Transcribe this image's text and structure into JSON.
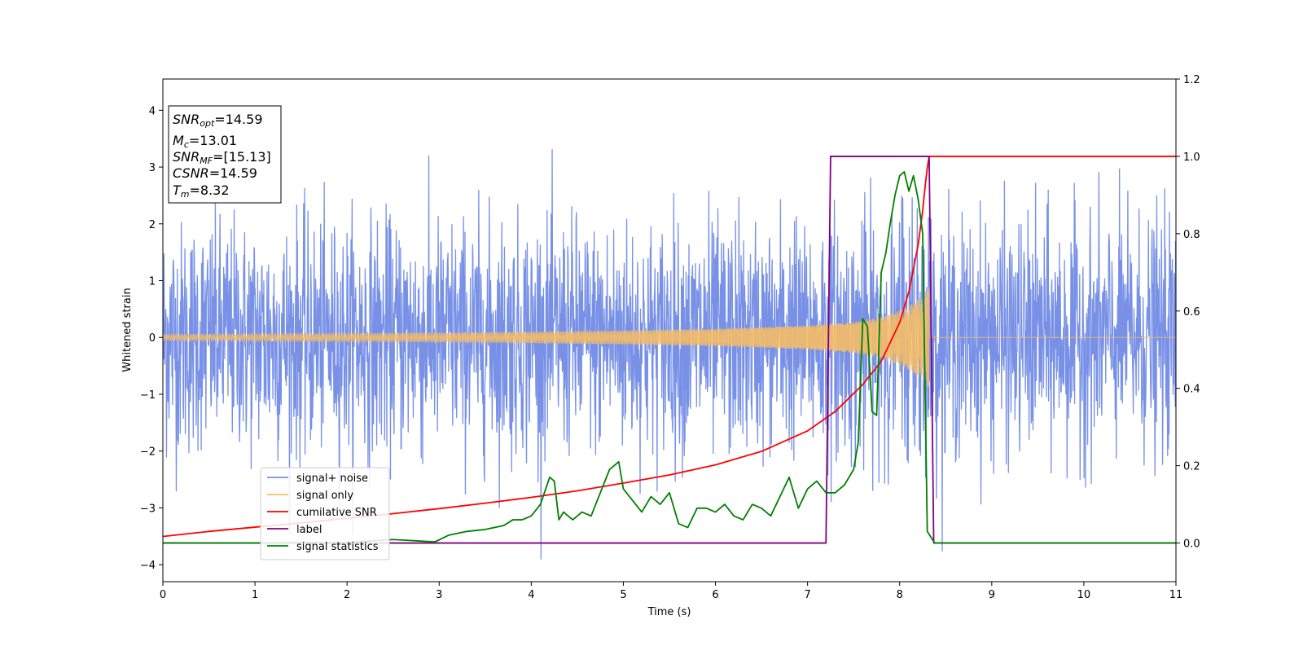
{
  "chart_data": {
    "type": "line",
    "title": "",
    "xlabel": "Time (s)",
    "ylabel": "Whitened strain",
    "xlim": [
      0,
      11
    ],
    "ylim": [
      -4.3,
      4.55
    ],
    "y2lim": [
      -0.1,
      1.2
    ],
    "grid": false,
    "legend_position": "lower-left",
    "x_ticks": [
      0,
      1,
      2,
      3,
      4,
      5,
      6,
      7,
      8,
      9,
      10,
      11
    ],
    "y_ticks": [
      -4,
      -3,
      -2,
      -1,
      0,
      1,
      2,
      3,
      4
    ],
    "y2_ticks": [
      0.0,
      0.2,
      0.4,
      0.6,
      0.8,
      1.0,
      1.2
    ],
    "y2_tick_labels": [
      "0.0",
      "0.2",
      "0.4",
      "0.6",
      "0.8",
      "1.0",
      "1.2"
    ],
    "annotation": {
      "snr_opt": {
        "symbol": "SNR",
        "sub": "opt",
        "value": "=14.59"
      },
      "mc": {
        "symbol": "M",
        "sub": "c",
        "value": "=13.01"
      },
      "snr_mf": {
        "symbol": "SNR",
        "sub": "MF",
        "value": "=[15.13]"
      },
      "csnr": {
        "symbol": "CSNR",
        "value": "=14.59"
      },
      "tm": {
        "symbol": "T",
        "sub": "m",
        "value": "=8.32"
      }
    },
    "series": [
      {
        "name": "signal+ noise",
        "axis": "left",
        "color": "#7891e6",
        "noise_std": 1.0,
        "x_range": [
          0,
          11
        ]
      },
      {
        "name": "signal only",
        "axis": "left",
        "color": "#f4bd67",
        "envelope": {
          "x": [
            0,
            1,
            2,
            3,
            4,
            5,
            6,
            7,
            7.5,
            7.8,
            8.0,
            8.15,
            8.25,
            8.3,
            8.32
          ],
          "amp": [
            0.05,
            0.06,
            0.07,
            0.08,
            0.1,
            0.12,
            0.15,
            0.21,
            0.27,
            0.36,
            0.48,
            0.62,
            0.76,
            0.85,
            0.88
          ]
        },
        "end_x": 8.32
      },
      {
        "name": "cumilative SNR",
        "axis": "right",
        "color": "#ff0000",
        "x": [
          0,
          0.5,
          1,
          1.5,
          2,
          2.5,
          3,
          3.5,
          4,
          4.5,
          5,
          5.5,
          6,
          6.5,
          7,
          7.3,
          7.6,
          7.8,
          8.0,
          8.1,
          8.2,
          8.25,
          8.28,
          8.3,
          8.32,
          9,
          10,
          11
        ],
        "values": [
          0.017,
          0.03,
          0.041,
          0.052,
          0.064,
          0.076,
          0.089,
          0.103,
          0.118,
          0.135,
          0.155,
          0.176,
          0.202,
          0.237,
          0.29,
          0.34,
          0.41,
          0.47,
          0.57,
          0.65,
          0.77,
          0.86,
          0.93,
          0.97,
          1.0,
          1.0,
          1.0,
          1.0
        ]
      },
      {
        "name": "label",
        "axis": "right",
        "color": "#800080",
        "x": [
          0,
          7.2,
          7.25,
          8.32,
          8.37,
          11
        ],
        "values": [
          0,
          0,
          1,
          1,
          0,
          0
        ]
      },
      {
        "name": "signal statistics",
        "axis": "right",
        "color": "#008000",
        "x": [
          0,
          1,
          2,
          2.5,
          2.8,
          2.95,
          3.0,
          3.1,
          3.3,
          3.5,
          3.7,
          3.8,
          3.9,
          4.0,
          4.1,
          4.2,
          4.25,
          4.3,
          4.35,
          4.45,
          4.55,
          4.65,
          4.75,
          4.85,
          4.95,
          5.0,
          5.1,
          5.2,
          5.3,
          5.4,
          5.5,
          5.6,
          5.7,
          5.8,
          5.9,
          6.0,
          6.1,
          6.2,
          6.3,
          6.4,
          6.5,
          6.6,
          6.7,
          6.8,
          6.9,
          7.0,
          7.1,
          7.2,
          7.3,
          7.4,
          7.5,
          7.55,
          7.6,
          7.65,
          7.7,
          7.75,
          7.8,
          7.85,
          7.9,
          7.95,
          8.0,
          8.05,
          8.1,
          8.15,
          8.2,
          8.25,
          8.3,
          8.38,
          9,
          10,
          11
        ],
        "values": [
          0,
          0,
          0.002,
          0.009,
          0.005,
          0.003,
          0.008,
          0.02,
          0.03,
          0.035,
          0.045,
          0.06,
          0.06,
          0.07,
          0.1,
          0.17,
          0.16,
          0.06,
          0.08,
          0.06,
          0.08,
          0.07,
          0.13,
          0.19,
          0.21,
          0.14,
          0.11,
          0.08,
          0.12,
          0.1,
          0.13,
          0.05,
          0.04,
          0.09,
          0.09,
          0.08,
          0.1,
          0.07,
          0.06,
          0.1,
          0.09,
          0.07,
          0.12,
          0.17,
          0.09,
          0.14,
          0.16,
          0.13,
          0.13,
          0.15,
          0.19,
          0.26,
          0.58,
          0.56,
          0.34,
          0.33,
          0.7,
          0.75,
          0.83,
          0.9,
          0.95,
          0.96,
          0.91,
          0.95,
          0.89,
          0.8,
          0.03,
          0.0,
          0.0,
          0.0,
          0.0
        ]
      }
    ]
  }
}
